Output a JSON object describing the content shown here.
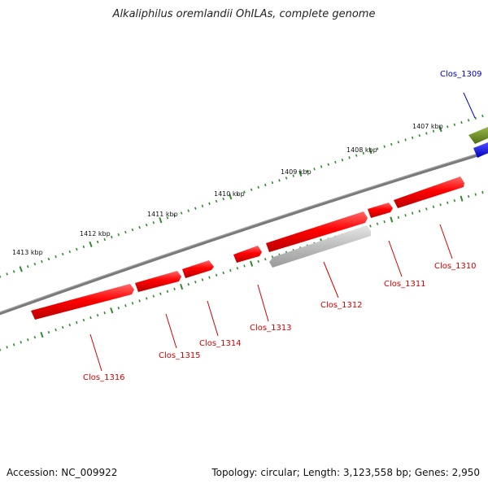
{
  "title": "Alkaliphilus oremlandii OhILAs, complete genome",
  "footer": {
    "accession": "Accession: NC_009922",
    "summary": "Topology: circular; Length: 3,123,558 bp; Genes: 2,950"
  },
  "colors": {
    "backbone": "#7a7a7a",
    "tick": "#2e8b2e",
    "gene_red": "#ff0000",
    "gene_gray": "#b8b8b8",
    "gene_olive": "#6b8e23",
    "gene_blue": "#0000ff",
    "label_red": "#d40000",
    "label_blue": "#0000cc"
  },
  "ruler": {
    "labels": [
      "1407 kbp",
      "1408 kbp",
      "1409 kbp",
      "1410 kbp",
      "1411 kbp",
      "1412 kbp",
      "1413 kbp"
    ]
  },
  "genes": [
    {
      "name": "Clos_1309",
      "strand": "forward",
      "color": "blue"
    },
    {
      "name": "Clos_1310",
      "strand": "forward",
      "color": "red"
    },
    {
      "name": "Clos_1311",
      "strand": "forward",
      "color": "red"
    },
    {
      "name": "Clos_1312",
      "strand": "reverse",
      "color": "gray"
    },
    {
      "name": "Clos_1313",
      "strand": "forward",
      "color": "red"
    },
    {
      "name": "Clos_1314",
      "strand": "forward",
      "color": "red"
    },
    {
      "name": "Clos_1315",
      "strand": "forward",
      "color": "red"
    },
    {
      "name": "Clos_1316",
      "strand": "forward",
      "color": "red"
    }
  ]
}
